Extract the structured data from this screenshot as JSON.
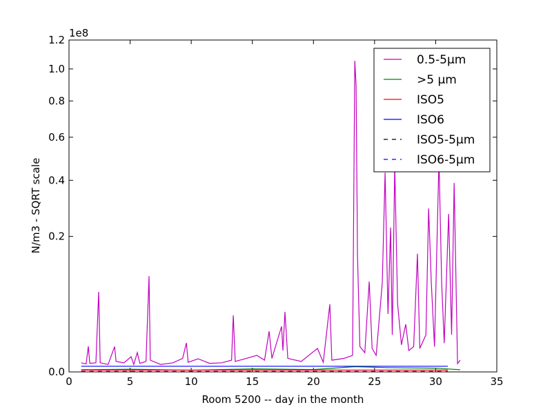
{
  "chart_data": {
    "type": "line",
    "x_label": "Room 5200 -- day in the month",
    "y_label": "N/m3 - SQRT scale",
    "y_offset_label": "1e8",
    "yscale": "sqrt",
    "xlim": [
      0,
      35
    ],
    "xticks": [
      0,
      5,
      10,
      15,
      20,
      25,
      30,
      35
    ],
    "ylim": [
      0,
      120000000
    ],
    "yticks": [
      {
        "value": 0,
        "label": "0.0"
      },
      {
        "value": 20000000,
        "label": "0.2"
      },
      {
        "value": 40000000,
        "label": "0.4"
      },
      {
        "value": 60000000,
        "label": "0.6"
      },
      {
        "value": 80000000,
        "label": "0.8"
      },
      {
        "value": 100000000,
        "label": "1.0"
      },
      {
        "value": 120000000,
        "label": "1.2"
      }
    ],
    "legend": "upper right",
    "series": [
      {
        "name": "0.5-5µm",
        "color": "#bf00bf",
        "dash": "solid",
        "x": [
          1,
          1.4,
          1.58,
          1.7,
          2.2,
          2.43,
          2.55,
          3.2,
          3.73,
          3.85,
          4.5,
          5.08,
          5.3,
          5.59,
          5.8,
          6.3,
          6.55,
          6.65,
          7.5,
          8.5,
          9.3,
          9.6,
          9.75,
          10.56,
          11.5,
          12.5,
          13.3,
          13.44,
          13.6,
          14.5,
          15.36,
          16.0,
          16.37,
          16.6,
          17.39,
          17.5,
          17.67,
          17.9,
          19,
          20.33,
          20.8,
          21.34,
          21.5,
          22.5,
          23.2,
          23.38,
          23.49,
          23.6,
          23.8,
          24.2,
          24.56,
          24.8,
          25.13,
          25.63,
          25.86,
          26.1,
          26.31,
          26.45,
          26.65,
          26.88,
          27.2,
          27.55,
          27.8,
          28.2,
          28.51,
          28.7,
          29.2,
          29.42,
          29.64,
          29.9,
          30.27,
          30.49,
          30.7,
          31.06,
          31.3,
          31.51,
          31.79,
          32
        ],
        "values": [
          90000,
          70000,
          710000,
          80000,
          90000,
          6980000,
          90000,
          60000,
          700000,
          120000,
          90000,
          251000,
          60000,
          407000,
          80000,
          120000,
          10000000,
          150000,
          60000,
          90000,
          200000,
          915000,
          100000,
          187000,
          80000,
          90000,
          150000,
          3490000,
          120000,
          200000,
          300000,
          150000,
          1800000,
          200000,
          2260000,
          500000,
          3930000,
          200000,
          120000,
          600000,
          100000,
          4980000,
          150000,
          200000,
          300000,
          105500000,
          89300000,
          14800000,
          700000,
          400000,
          8900000,
          600000,
          300000,
          8600000,
          43300000,
          3660000,
          22700000,
          1500000,
          46400000,
          5100000,
          800000,
          2470000,
          500000,
          700000,
          15200000,
          600000,
          1500000,
          29100000,
          8600000,
          700000,
          49500000,
          8600000,
          900000,
          27200000,
          1500000,
          38900000,
          75000,
          150000
        ]
      },
      {
        "name": ">5 µm",
        "color": "#008000",
        "dash": "solid",
        "x": [
          1,
          5,
          10,
          15,
          20,
          23.4,
          26,
          30,
          32
        ],
        "values": [
          5000,
          8000,
          3000,
          10000,
          6000,
          30000,
          20000,
          15000,
          5000
        ]
      },
      {
        "name": "ISO5",
        "color": "#ff0000",
        "dash": "solid",
        "x": [
          1,
          31
        ],
        "values": [
          3520,
          3520
        ]
      },
      {
        "name": "ISO6",
        "color": "#0000ff",
        "dash": "solid",
        "x": [
          1,
          31
        ],
        "values": [
          35200,
          35200
        ]
      },
      {
        "name": "ISO5-5µm",
        "color": "#000000",
        "dash": "dashed",
        "x": [
          1,
          31
        ],
        "values": [
          29,
          29
        ]
      },
      {
        "name": "ISO6-5µm",
        "color": "#0000ff",
        "dash": "dashed",
        "x": [
          1,
          31
        ],
        "values": [
          293,
          293
        ]
      }
    ]
  }
}
